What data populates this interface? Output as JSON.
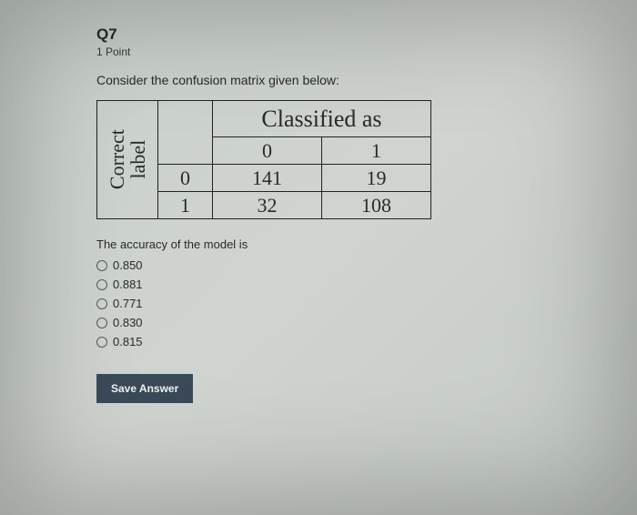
{
  "question": {
    "number": "Q7",
    "points": "1 Point",
    "prompt": "Consider the confusion matrix given below:",
    "followup": "The accuracy of the model is"
  },
  "matrix": {
    "side_label_line1": "Correct",
    "side_label_line2": "label",
    "top_header": "Classified as",
    "col_labels": [
      "0",
      "1"
    ],
    "row_labels": [
      "0",
      "1"
    ],
    "cells": [
      [
        "141",
        "19"
      ],
      [
        "32",
        "108"
      ]
    ],
    "border_color": "#222222",
    "font_family": "Times New Roman",
    "header_fontsize": 26,
    "cell_fontsize": 22
  },
  "options": [
    {
      "label": "0.850"
    },
    {
      "label": "0.881"
    },
    {
      "label": "0.771"
    },
    {
      "label": "0.830"
    },
    {
      "label": "0.815"
    }
  ],
  "buttons": {
    "save": "Save Answer"
  },
  "colors": {
    "page_bg": "#ccd2cc",
    "text": "#2a2a2a",
    "button_bg": "#3a4a58",
    "button_text": "#f0f0f0",
    "radio_border": "#5a5a5a"
  }
}
